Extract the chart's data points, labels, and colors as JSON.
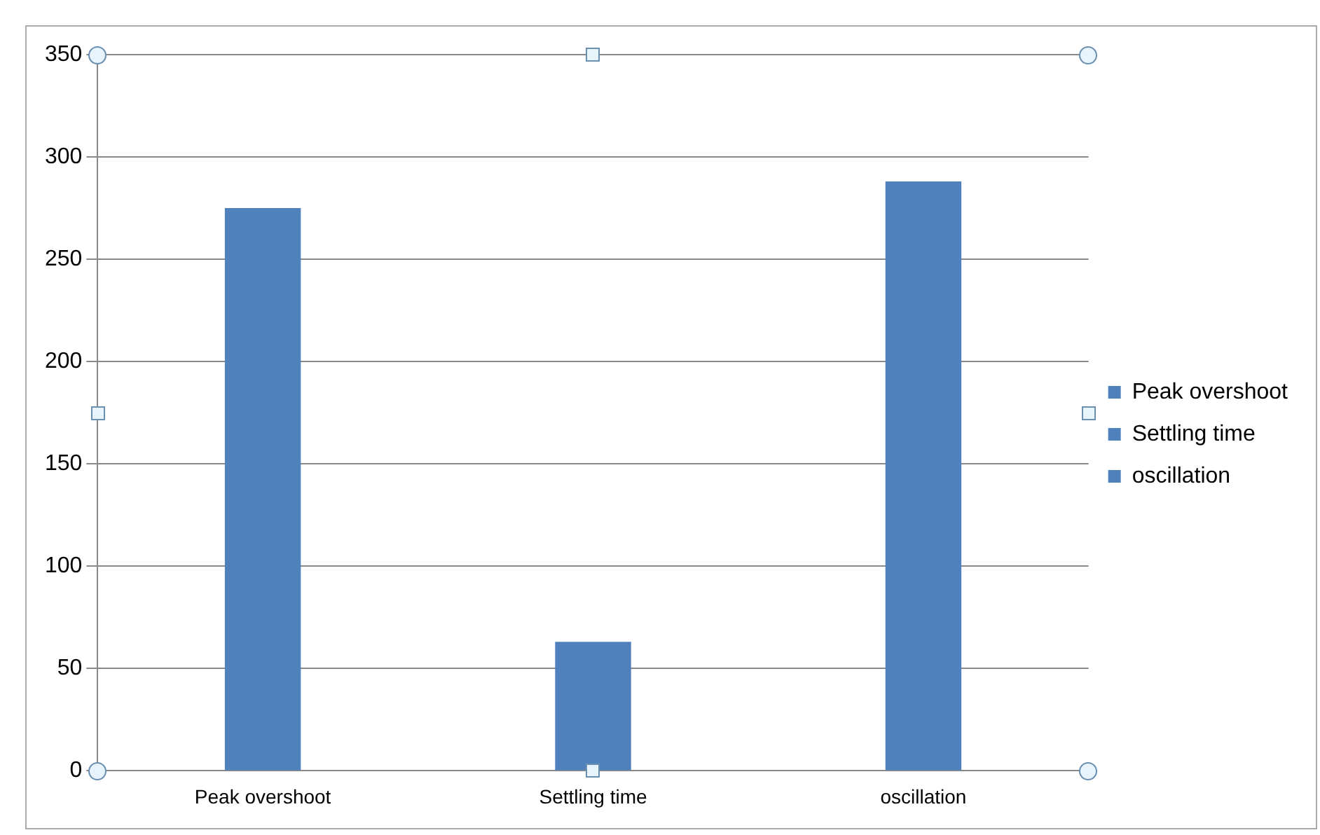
{
  "chart_data": {
    "type": "bar",
    "categories": [
      "Peak overshoot",
      "Settling time",
      "oscillation"
    ],
    "series": [
      {
        "name": "Peak overshoot",
        "color": "#4f81bd",
        "values": [
          275,
          null,
          null
        ]
      },
      {
        "name": "Settling time",
        "color": "#4f81bd",
        "values": [
          null,
          63,
          null
        ]
      },
      {
        "name": "oscillation",
        "color": "#4f81bd",
        "values": [
          null,
          null,
          288
        ]
      }
    ],
    "ylim": [
      0,
      350
    ],
    "yticks": [
      0,
      50,
      100,
      150,
      200,
      250,
      300,
      350
    ],
    "grid": "y",
    "legend": "right"
  }
}
